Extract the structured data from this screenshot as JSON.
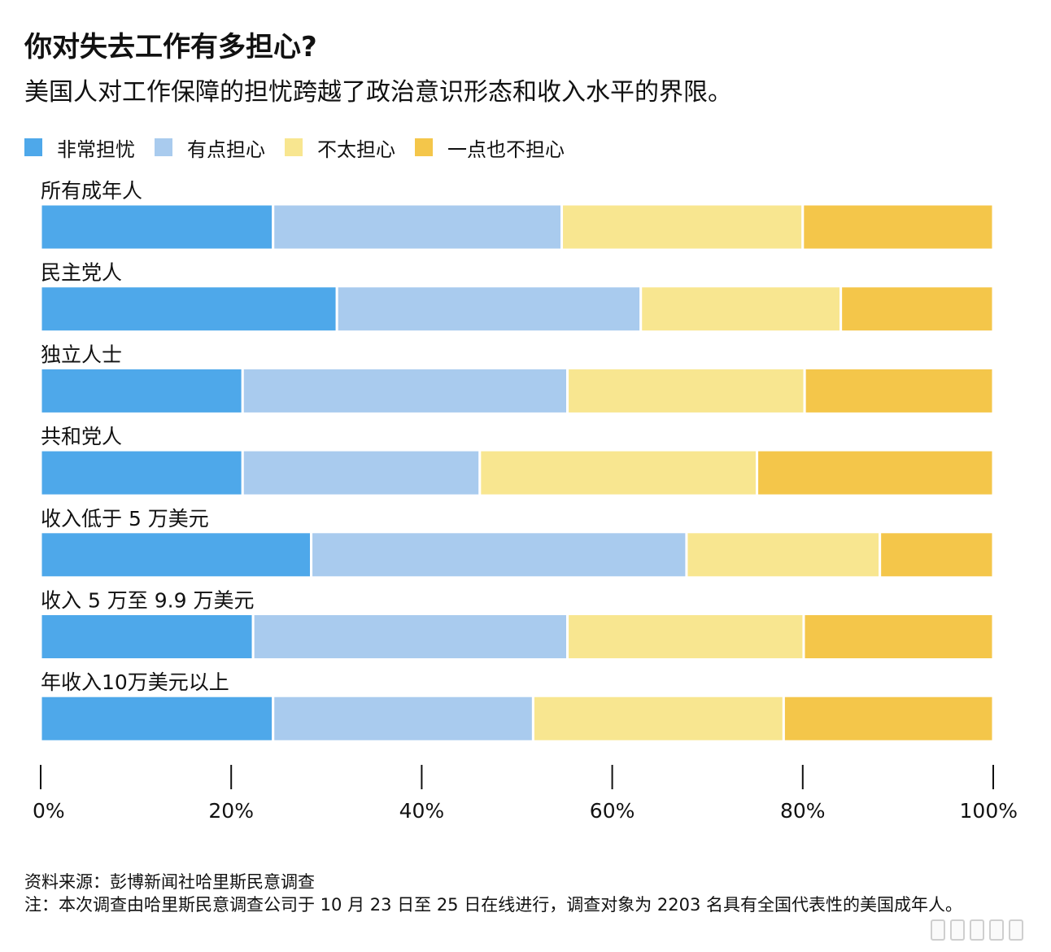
{
  "title": "你对失去工作有多担心?",
  "subtitle": "美国人对工作保障的担忧跨越了政治意识形态和收入水平的界限。",
  "legend": [
    {
      "label": "非常担忧",
      "color": "#4ea8ea"
    },
    {
      "label": "有点担心",
      "color": "#a9cbee"
    },
    {
      "label": "不太担心",
      "color": "#f8e690"
    },
    {
      "label": "一点也不担心",
      "color": "#f4c64a"
    }
  ],
  "chart_data": {
    "type": "bar",
    "orientation": "horizontal",
    "stacked": true,
    "categories": [
      "所有成年人",
      "民主党人",
      "独立人士",
      "共和党人",
      "收入低于 5 万美元",
      "收入 5 万至 9.9 万美元",
      "年收入10万美元以上"
    ],
    "series": [
      {
        "name": "非常担忧",
        "values": [
          24.4,
          31.1,
          21.2,
          21.2,
          28.4,
          22.3,
          24.4
        ]
      },
      {
        "name": "有点担心",
        "values": [
          30.3,
          31.9,
          34.1,
          24.9,
          39.4,
          33.0,
          27.3
        ]
      },
      {
        "name": "不太担心",
        "values": [
          25.3,
          21.0,
          24.9,
          29.1,
          20.3,
          24.8,
          26.3
        ]
      },
      {
        "name": "一点也不担心",
        "values": [
          20.0,
          16.0,
          19.8,
          24.8,
          11.9,
          19.9,
          22.0
        ]
      }
    ],
    "xlim": [
      0,
      100
    ],
    "xticks": [
      0,
      20,
      40,
      60,
      80,
      100
    ],
    "xtick_labels": [
      "0%",
      "20%",
      "40%",
      "60%",
      "80%",
      "100%"
    ]
  },
  "source": "资料来源：彭博新闻社哈里斯民意调查",
  "note": "注：本次调查由哈里斯民意调查公司于 10 月 23 日至 25 日在线进行，调查对象为 2203 名具有全国代表性的美国成年人。"
}
